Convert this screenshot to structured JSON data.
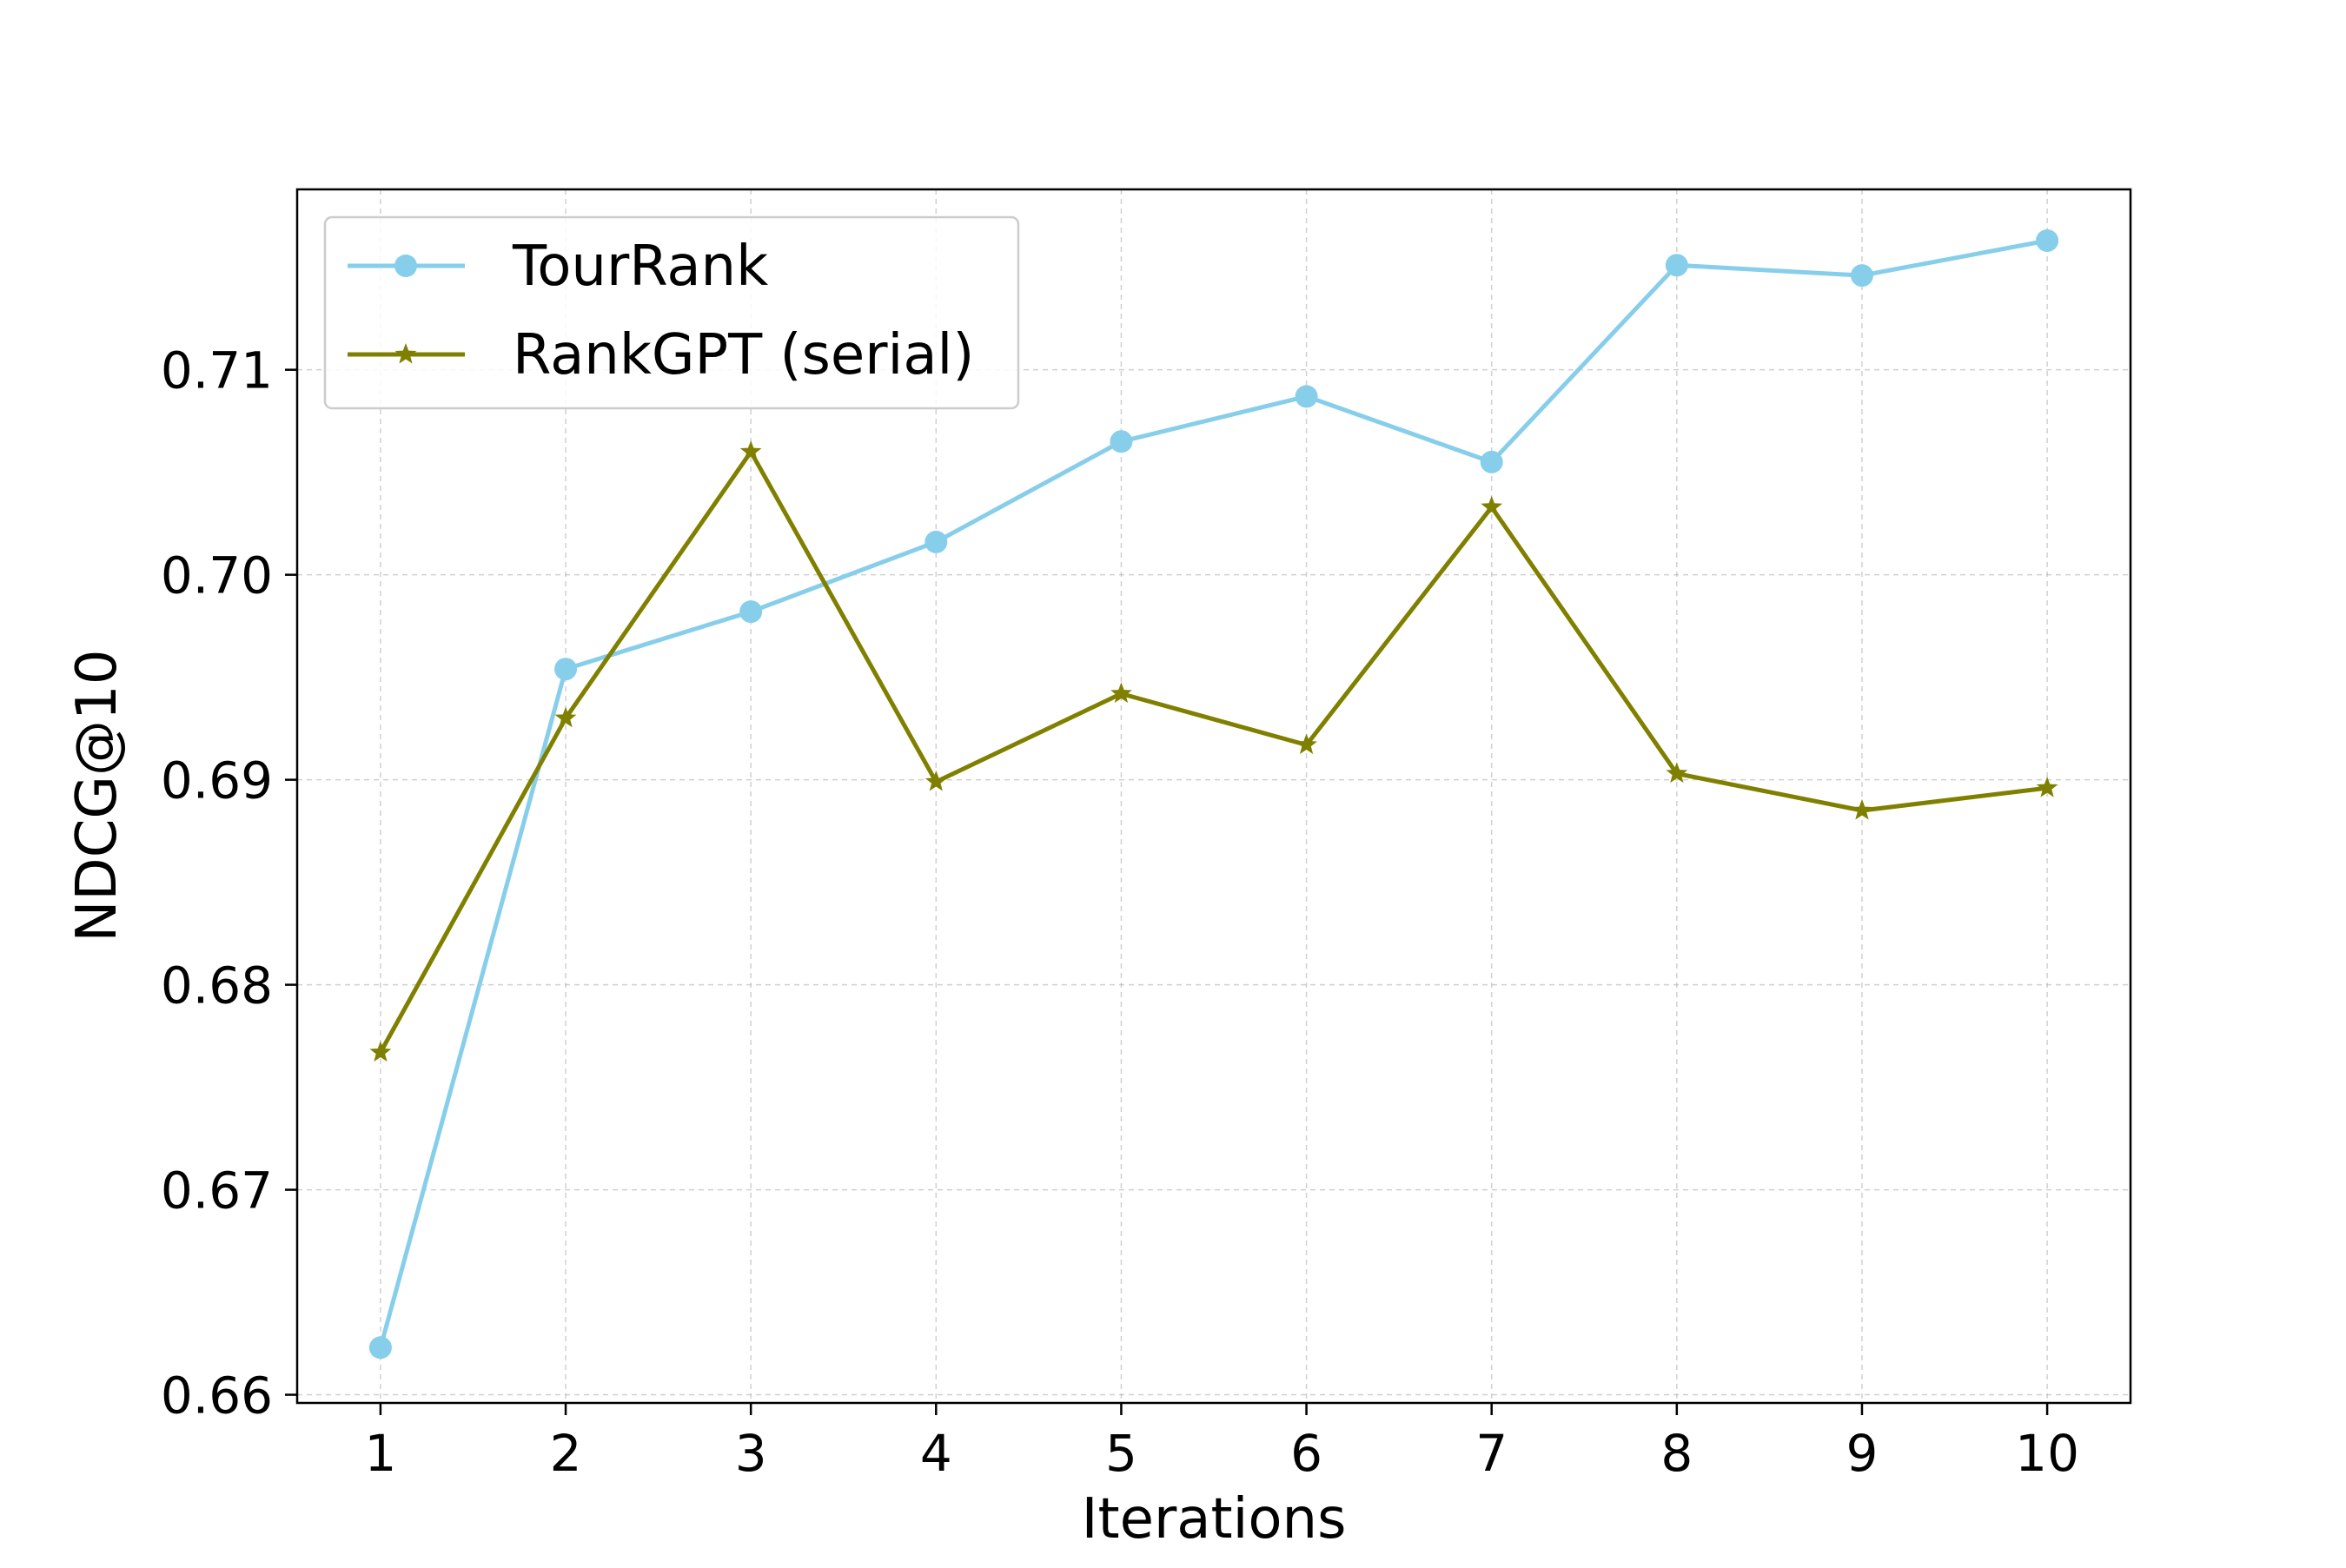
{
  "chart_data": {
    "type": "line",
    "title": "",
    "xlabel": "Iterations",
    "ylabel": "NDCG@10",
    "x": [
      1,
      2,
      3,
      4,
      5,
      6,
      7,
      8,
      9,
      10
    ],
    "xlim": [
      0.55,
      10.45
    ],
    "ylim": [
      0.6596,
      0.7188
    ],
    "x_ticks": [
      1,
      2,
      3,
      4,
      5,
      6,
      7,
      8,
      9,
      10
    ],
    "y_ticks": [
      0.66,
      0.67,
      0.68,
      0.69,
      0.7,
      0.71
    ],
    "y_tick_labels": [
      "0.66",
      "0.67",
      "0.68",
      "0.69",
      "0.70",
      "0.71"
    ],
    "grid": true,
    "legend_position": "top-left",
    "series": [
      {
        "name": "TourRank",
        "color": "#87CEEB",
        "marker": "circle",
        "values": [
          0.6623,
          0.6954,
          0.6982,
          0.7016,
          0.7065,
          0.7087,
          0.7055,
          0.7151,
          0.7146,
          0.7163
        ]
      },
      {
        "name": "RankGPT (serial)",
        "color": "#808000",
        "marker": "star",
        "values": [
          0.6767,
          0.693,
          0.706,
          0.6899,
          0.6942,
          0.6917,
          0.7033,
          0.6903,
          0.6885,
          0.6896
        ]
      }
    ]
  }
}
